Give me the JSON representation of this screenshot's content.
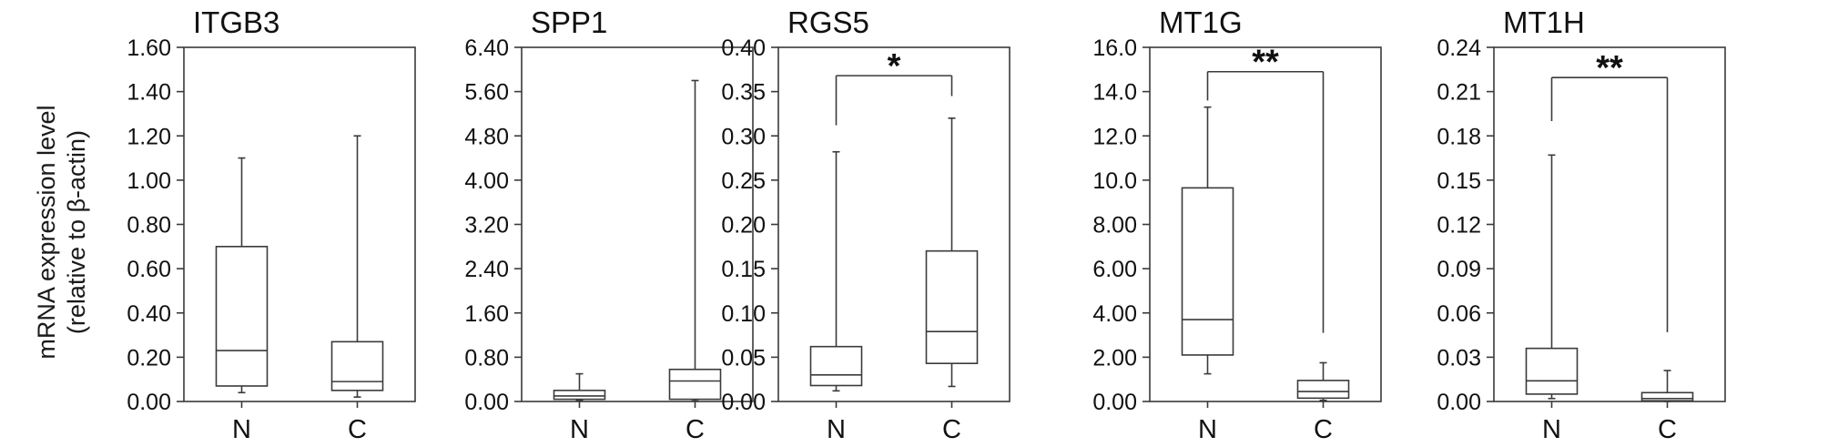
{
  "y_axis_title": {
    "line1": "mRNA expression level",
    "line2": "(relative to β-actin)"
  },
  "chart_data": [
    {
      "type": "box",
      "title": "ITGB3",
      "categories": [
        "N",
        "C"
      ],
      "ylim": [
        0,
        1.6
      ],
      "yticks": [
        "0.00",
        "0.20",
        "0.40",
        "0.60",
        "0.80",
        "1.00",
        "1.20",
        "1.40",
        "1.60"
      ],
      "boxes": [
        {
          "category": "N",
          "min": 0.04,
          "q1": 0.07,
          "median": 0.23,
          "q3": 0.7,
          "max": 1.1
        },
        {
          "category": "C",
          "min": 0.02,
          "q1": 0.05,
          "median": 0.09,
          "q3": 0.27,
          "max": 1.2
        }
      ],
      "significance": null
    },
    {
      "type": "box",
      "title": "SPP1",
      "categories": [
        "N",
        "C"
      ],
      "ylim": [
        0,
        6.4
      ],
      "yticks": [
        "0.00",
        "0.80",
        "1.60",
        "2.40",
        "3.20",
        "4.00",
        "4.80",
        "5.60",
        "6.40"
      ],
      "boxes": [
        {
          "category": "N",
          "min": 0.02,
          "q1": 0.04,
          "median": 0.1,
          "q3": 0.2,
          "max": 0.5
        },
        {
          "category": "C",
          "min": 0.01,
          "q1": 0.04,
          "median": 0.37,
          "q3": 0.58,
          "max": 5.8
        }
      ],
      "significance": null
    },
    {
      "type": "box",
      "title": "RGS5",
      "categories": [
        "N",
        "C"
      ],
      "ylim": [
        0,
        0.4
      ],
      "yticks": [
        "0.00",
        "0.05",
        "0.10",
        "0.15",
        "0.20",
        "0.25",
        "0.30",
        "0.35",
        "0.40"
      ],
      "boxes": [
        {
          "category": "N",
          "min": 0.012,
          "q1": 0.018,
          "median": 0.03,
          "q3": 0.062,
          "max": 0.282
        },
        {
          "category": "C",
          "min": 0.017,
          "q1": 0.043,
          "median": 0.079,
          "q3": 0.17,
          "max": 0.32
        }
      ],
      "significance": {
        "label": "*",
        "y": 0.368,
        "left_drop": 0.312,
        "right_drop": 0.345
      }
    },
    {
      "type": "box",
      "title": "MT1G",
      "categories": [
        "N",
        "C"
      ],
      "ylim": [
        0,
        16
      ],
      "yticks": [
        "0.00",
        "2.00",
        "4.00",
        "6.00",
        "8.00",
        "10.0",
        "12.0",
        "14.0",
        "16.0"
      ],
      "boxes": [
        {
          "category": "N",
          "min": 1.25,
          "q1": 2.1,
          "median": 3.7,
          "q3": 9.65,
          "max": 13.3
        },
        {
          "category": "C",
          "min": 0.05,
          "q1": 0.15,
          "median": 0.45,
          "q3": 0.95,
          "max": 1.75
        }
      ],
      "significance": {
        "label": "**",
        "y": 14.9,
        "left_drop": 13.6,
        "right_drop": 3.1
      }
    },
    {
      "type": "box",
      "title": "MT1H",
      "categories": [
        "N",
        "C"
      ],
      "ylim": [
        0,
        0.24
      ],
      "yticks": [
        "0.00",
        "0.03",
        "0.06",
        "0.09",
        "0.12",
        "0.15",
        "0.18",
        "0.21",
        "0.24"
      ],
      "boxes": [
        {
          "category": "N",
          "min": 0.002,
          "q1": 0.005,
          "median": 0.014,
          "q3": 0.036,
          "max": 0.167
        },
        {
          "category": "C",
          "min": 0.0,
          "q1": 0.0005,
          "median": 0.002,
          "q3": 0.006,
          "max": 0.021
        }
      ],
      "significance": {
        "label": "**",
        "y": 0.2195,
        "left_drop": 0.19,
        "right_drop": 0.047
      }
    }
  ]
}
